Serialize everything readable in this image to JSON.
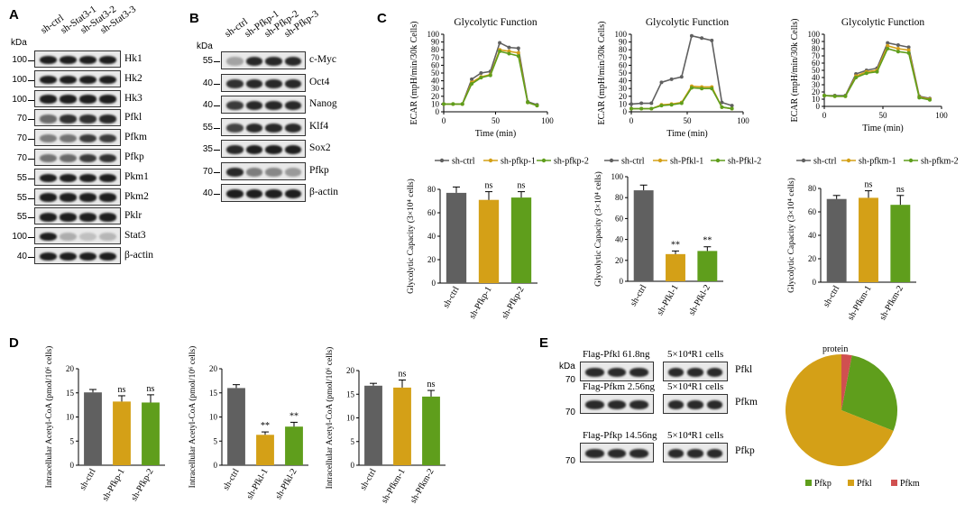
{
  "panels": {
    "A": "A",
    "B": "B",
    "C": "C",
    "D": "D",
    "E": "E"
  },
  "kda": "kDa",
  "A": {
    "lanes": [
      "sh-ctrl",
      "sh-Stat3-1",
      "sh-Stat3-2",
      "sh-Stat3-3"
    ],
    "blots": [
      {
        "mw": "100",
        "label": "Hk1"
      },
      {
        "mw": "100",
        "label": "Hk2"
      },
      {
        "mw": "100",
        "label": "Hk3"
      },
      {
        "mw": "70",
        "label": "Pfkl"
      },
      {
        "mw": "70",
        "label": "Pfkm"
      },
      {
        "mw": "70",
        "label": "Pfkp"
      },
      {
        "mw": "55",
        "label": "Pkm1"
      },
      {
        "mw": "55",
        "label": "Pkm2"
      },
      {
        "mw": "55",
        "label": "Pklr"
      },
      {
        "mw": "100",
        "label": "Stat3"
      },
      {
        "mw": "40",
        "label": "β-actin"
      }
    ]
  },
  "B": {
    "lanes": [
      "sh-ctrl",
      "sh-Pfkp-1",
      "sh-Pfkp-2",
      "sh-Pfkp-3"
    ],
    "blots": [
      {
        "mw": "55",
        "label": "c-Myc"
      },
      {
        "mw": "40",
        "label": "Oct4"
      },
      {
        "mw": "40",
        "label": "Nanog"
      },
      {
        "mw": "55",
        "label": "Klf4"
      },
      {
        "mw": "35",
        "label": "Sox2"
      },
      {
        "mw": "70",
        "label": "Pfkp"
      },
      {
        "mw": "40",
        "label": "β-actin"
      }
    ]
  },
  "C": {
    "ecar_title": "Glycolytic Function",
    "ecar_ylabel": "ECAR (mpH/min/30k Cells)",
    "ecar_xlabel": "Time (min)",
    "cap_ylabels": [
      "Glycolytic Capacity (3×10⁴ cells)",
      "Glycolytic Capacity (3×10⁴ cells)",
      "Glycolytic Capacity (3×10⁴ cells)"
    ],
    "legends": [
      [
        "sh-ctrl",
        "sh-pfkp-1",
        "sh-pfkp-2"
      ],
      [
        "sh-ctrl",
        "sh-Pfkl-1",
        "sh-Pfkl-2"
      ],
      [
        "sh-ctrl",
        "sh-pfkm-1",
        "sh-pfkm-2"
      ]
    ],
    "cap_categories": [
      [
        "sh-ctrl",
        "sh-Pfkp-1",
        "sh-Pfkp-2"
      ],
      [
        "sh-ctrl",
        "sh-Pfkl-1",
        "sh-Pfkl-2"
      ],
      [
        "sh-ctrl",
        "sh-Pfkm-1",
        "sh-Pfkm-2"
      ]
    ]
  },
  "D": {
    "ylabel": "Intracellular Acetyl-CoA (pmol/10⁶ cells)",
    "categories": [
      [
        "sh-ctrl",
        "sh-Pfkp-1",
        "sh-Pfkp-2"
      ],
      [
        "sh-ctrl",
        "sh-Pfkl-1",
        "sh-Pfkl-2"
      ],
      [
        "sh-ctrl",
        "sh-Pfkm-1",
        "sh-Pfkm-2"
      ]
    ]
  },
  "E": {
    "rows": [
      {
        "flag": "Flag-Pfkl 61.8ng",
        "cells": "5×10⁴R1 cells",
        "label": "Pfkl",
        "mw": "70"
      },
      {
        "flag": "Flag-Pfkm 2.56ng",
        "cells": "5×10⁴R1 cells",
        "label": "Pfkm",
        "mw": "70"
      },
      {
        "flag": "Flag-Pfkp 14.56ng",
        "cells": "5×10⁴R1 cells",
        "label": "Pfkp",
        "mw": "70"
      }
    ],
    "pie_title": "protein"
  },
  "colors": {
    "ctrl": "#606060",
    "s1": "#d4a017",
    "s2": "#5f9e1c",
    "pie_pfkp": "#5f9e1c",
    "pie_pfkl": "#d4a017",
    "pie_pfkm": "#d05050"
  },
  "chart_data": [
    {
      "type": "line",
      "title": "Glycolytic Function",
      "xlabel": "Time (min)",
      "ylabel": "ECAR (mpH/min/30k Cells)",
      "xlim": [
        0,
        100
      ],
      "ylim": [
        0,
        100
      ],
      "x": [
        0,
        9,
        18,
        27,
        36,
        45,
        54,
        63,
        72,
        81,
        90
      ],
      "series": [
        {
          "name": "sh-ctrl",
          "values": [
            10,
            10,
            10,
            42,
            50,
            52,
            89,
            83,
            82,
            13,
            9
          ]
        },
        {
          "name": "sh-pfkp-1",
          "values": [
            10,
            10,
            10,
            38,
            45,
            48,
            80,
            78,
            76,
            12,
            8
          ]
        },
        {
          "name": "sh-pfkp-2",
          "values": [
            10,
            10,
            10,
            36,
            44,
            47,
            78,
            75,
            72,
            12,
            8
          ]
        }
      ]
    },
    {
      "type": "line",
      "title": "Glycolytic Function",
      "xlabel": "Time (min)",
      "ylabel": "ECAR (mpH/min/30k Cells)",
      "xlim": [
        0,
        100
      ],
      "ylim": [
        0,
        100
      ],
      "x": [
        0,
        9,
        18,
        27,
        36,
        45,
        54,
        63,
        72,
        81,
        90
      ],
      "series": [
        {
          "name": "sh-ctrl",
          "values": [
            10,
            11,
            11,
            38,
            42,
            45,
            98,
            95,
            92,
            12,
            8
          ]
        },
        {
          "name": "sh-Pfkl-1",
          "values": [
            4,
            4,
            4,
            9,
            10,
            12,
            33,
            32,
            32,
            6,
            4
          ]
        },
        {
          "name": "sh-Pfkl-2",
          "values": [
            4,
            4,
            4,
            8,
            9,
            11,
            31,
            30,
            30,
            6,
            4
          ]
        }
      ]
    },
    {
      "type": "line",
      "title": "Glycolytic Function",
      "xlabel": "Time (min)",
      "ylabel": "ECAR (mpH/min/30k Cells)",
      "xlim": [
        0,
        100
      ],
      "ylim": [
        0,
        100
      ],
      "x": [
        0,
        9,
        18,
        27,
        36,
        45,
        54,
        63,
        72,
        81,
        90
      ],
      "series": [
        {
          "name": "sh-ctrl",
          "values": [
            15,
            15,
            15,
            45,
            50,
            53,
            88,
            85,
            82,
            14,
            11
          ]
        },
        {
          "name": "sh-pfkm-1",
          "values": [
            15,
            14,
            14,
            42,
            48,
            50,
            84,
            80,
            78,
            13,
            10
          ]
        },
        {
          "name": "sh-pfkm-2",
          "values": [
            15,
            14,
            14,
            40,
            46,
            48,
            80,
            76,
            74,
            12,
            9
          ]
        }
      ]
    },
    {
      "type": "bar",
      "ylabel": "Glycolytic Capacity (3×10⁴ cells)",
      "ylim": [
        0,
        80
      ],
      "ticks": [
        0,
        20,
        40,
        60,
        80
      ],
      "categories": [
        "sh-ctrl",
        "sh-Pfkp-1",
        "sh-Pfkp-2"
      ],
      "values": [
        77,
        71,
        73
      ],
      "errors": [
        5,
        7,
        5
      ],
      "annotations": [
        "",
        "ns",
        "ns"
      ]
    },
    {
      "type": "bar",
      "ylabel": "Glycolytic Capacity (3×10⁴ cells)",
      "ylim": [
        0,
        100
      ],
      "ticks": [
        0,
        20,
        40,
        60,
        80,
        100
      ],
      "categories": [
        "sh-ctrl",
        "sh-Pfkl-1",
        "sh-Pfkl-2"
      ],
      "values": [
        87,
        26,
        29
      ],
      "errors": [
        5,
        3,
        4
      ],
      "annotations": [
        "",
        "**",
        "**"
      ]
    },
    {
      "type": "bar",
      "ylabel": "Glycolytic Capacity (3×10⁴ cells)",
      "ylim": [
        0,
        80
      ],
      "ticks": [
        0,
        20,
        40,
        60,
        80
      ],
      "categories": [
        "sh-ctrl",
        "sh-Pfkm-1",
        "sh-Pfkm-2"
      ],
      "values": [
        71,
        72,
        66
      ],
      "errors": [
        3,
        6,
        8
      ],
      "annotations": [
        "",
        "ns",
        "ns"
      ]
    },
    {
      "type": "bar",
      "ylabel": "Intracellular Acetyl-CoA (pmol/10⁶ cells)",
      "ylim": [
        0,
        20
      ],
      "ticks": [
        0,
        5,
        10,
        15,
        20
      ],
      "categories": [
        "sh-ctrl",
        "sh-Pfkp-1",
        "sh-Pfkp-2"
      ],
      "values": [
        15.1,
        13.2,
        13.0
      ],
      "errors": [
        0.6,
        1.2,
        1.6
      ],
      "annotations": [
        "",
        "ns",
        "ns"
      ]
    },
    {
      "type": "bar",
      "ylabel": "Intracellular Acetyl-CoA (pmol/10⁶ cells)",
      "ylim": [
        0,
        20
      ],
      "ticks": [
        0,
        5,
        10,
        15,
        20
      ],
      "categories": [
        "sh-ctrl",
        "sh-Pfkl-1",
        "sh-Pfkl-2"
      ],
      "values": [
        16.0,
        6.3,
        8.0
      ],
      "errors": [
        0.7,
        0.6,
        0.9
      ],
      "annotations": [
        "",
        "**",
        "**"
      ]
    },
    {
      "type": "bar",
      "ylabel": "Intracellular Acetyl-CoA (pmol/10⁶ cells)",
      "ylim": [
        0,
        20
      ],
      "ticks": [
        0,
        5,
        10,
        15,
        20
      ],
      "categories": [
        "sh-ctrl",
        "sh-Pfkm-1",
        "sh-Pfkm-2"
      ],
      "values": [
        16.8,
        16.4,
        14.5
      ],
      "errors": [
        0.5,
        1.6,
        1.3
      ],
      "annotations": [
        "",
        "ns",
        "ns"
      ]
    },
    {
      "type": "pie",
      "title": "protein",
      "labels": [
        "Pfkp",
        "Pfkl",
        "Pfkm"
      ],
      "values": [
        28,
        69,
        3
      ]
    }
  ]
}
